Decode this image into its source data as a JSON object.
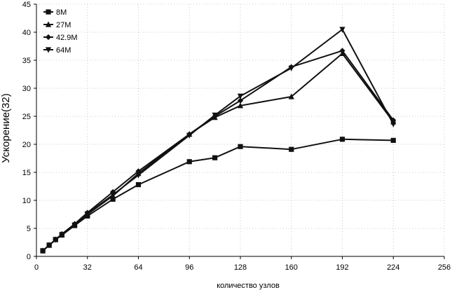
{
  "chart_data": {
    "type": "line",
    "title": "",
    "xlabel": "количество узлов",
    "ylabel": "Ускорение(32)",
    "xlim": [
      0,
      256
    ],
    "ylim": [
      0,
      45
    ],
    "x_ticks": [
      0,
      32,
      64,
      96,
      128,
      160,
      192,
      224,
      256
    ],
    "y_ticks": [
      0,
      5,
      10,
      15,
      20,
      25,
      30,
      35,
      40,
      45
    ],
    "grid": true,
    "legend_position": "top-left",
    "series": [
      {
        "name": "8M",
        "marker": "square",
        "x": [
          4,
          8,
          12,
          16,
          24,
          32,
          48,
          64,
          96,
          112,
          128,
          160,
          192,
          224
        ],
        "y": [
          1.0,
          2.0,
          3.0,
          3.8,
          5.5,
          7.2,
          10.2,
          12.8,
          16.9,
          17.6,
          19.6,
          19.1,
          20.9,
          20.7
        ]
      },
      {
        "name": "27M",
        "marker": "triangle-up",
        "x": [
          4,
          8,
          12,
          16,
          24,
          32,
          48,
          64,
          96,
          112,
          128,
          160,
          192,
          224
        ],
        "y": [
          1.0,
          2.0,
          3.0,
          3.9,
          5.7,
          7.5,
          10.8,
          14.8,
          21.8,
          24.8,
          26.9,
          28.5,
          36.2,
          24.0
        ]
      },
      {
        "name": "42.9M",
        "marker": "diamond",
        "x": [
          4,
          8,
          12,
          16,
          24,
          32,
          48,
          64,
          96,
          112,
          128,
          160,
          192,
          224
        ],
        "y": [
          1.0,
          2.0,
          3.0,
          4.0,
          5.8,
          7.8,
          11.5,
          15.2,
          21.8,
          25.0,
          27.8,
          33.8,
          36.7,
          24.3
        ]
      },
      {
        "name": "64M",
        "marker": "triangle-down",
        "x": [
          4,
          8,
          12,
          16,
          24,
          32,
          48,
          64,
          96,
          112,
          128,
          160,
          192,
          224
        ],
        "y": [
          1.0,
          2.0,
          3.0,
          3.9,
          5.6,
          7.6,
          11.0,
          14.5,
          21.6,
          25.2,
          28.6,
          33.6,
          40.5,
          23.6
        ]
      }
    ]
  }
}
